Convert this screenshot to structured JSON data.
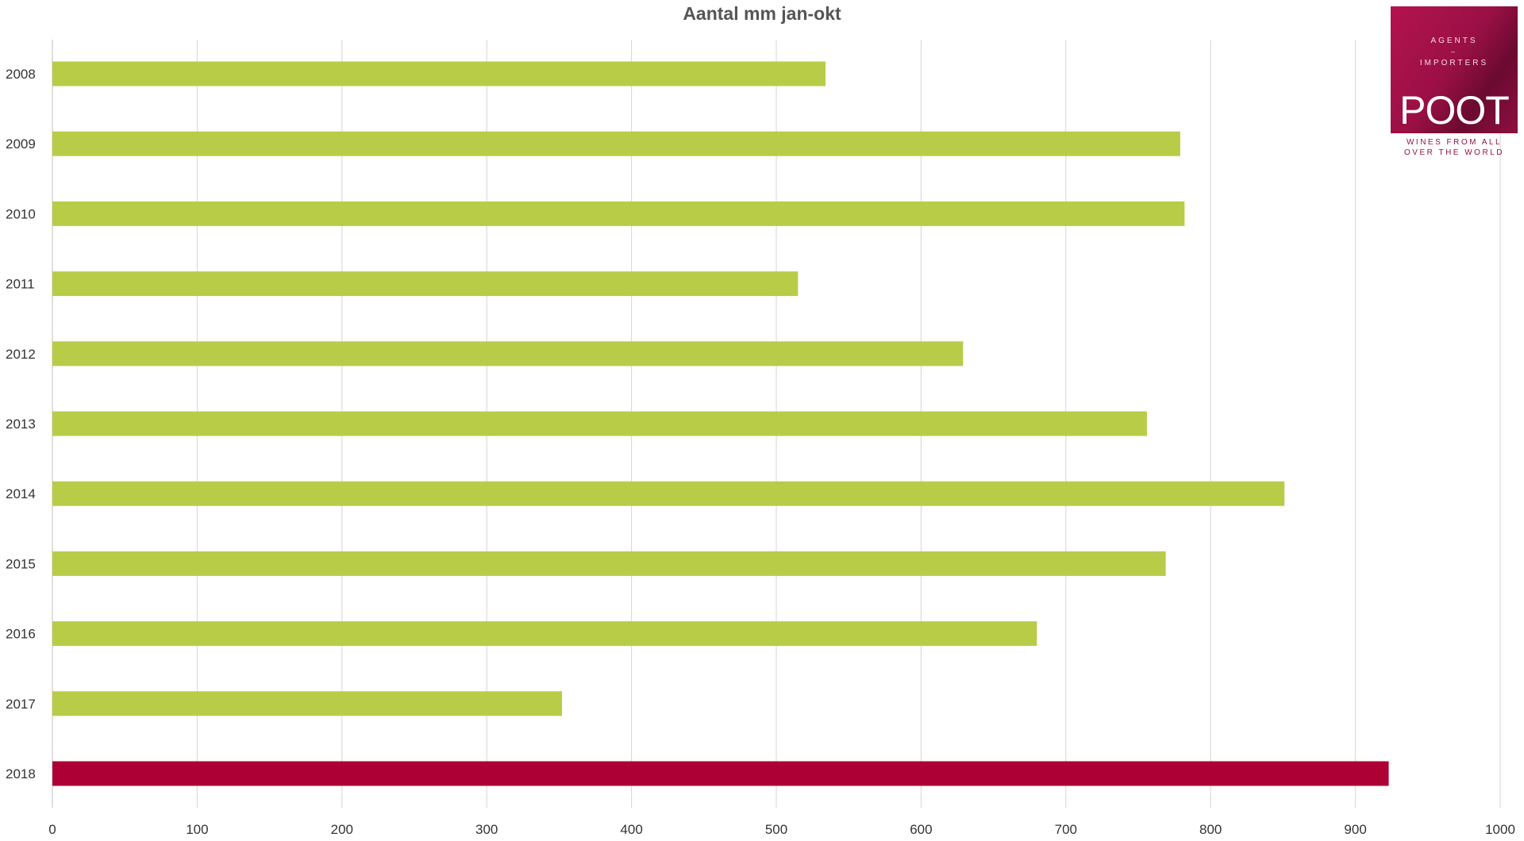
{
  "chart_data": {
    "type": "bar",
    "orientation": "horizontal",
    "title": "Aantal mm jan-okt",
    "xlabel": "",
    "ylabel": "",
    "xlim": [
      0,
      1000
    ],
    "x_ticks": [
      0,
      100,
      200,
      300,
      400,
      500,
      600,
      700,
      800,
      900,
      1000
    ],
    "grid": "vertical",
    "legend": "none",
    "categories": [
      "2008",
      "2009",
      "2010",
      "2011",
      "2012",
      "2013",
      "2014",
      "2015",
      "2016",
      "2017",
      "2018"
    ],
    "values": [
      534,
      779,
      782,
      515,
      629,
      756,
      851,
      769,
      680,
      352,
      923
    ],
    "colors": {
      "default": "#b9cc48",
      "highlight": "#ad0035",
      "grid": "#d6d6d6",
      "axis": "#bfbfbf",
      "tick_label": "#333333"
    },
    "highlight_category": "2018"
  },
  "logo": {
    "line1": "AGENTS",
    "line2": "–",
    "line3": "IMPORTERS",
    "brand": "POOT",
    "tagline_1": "WINES FROM ALL",
    "tagline_2": "OVER THE WORLD"
  }
}
